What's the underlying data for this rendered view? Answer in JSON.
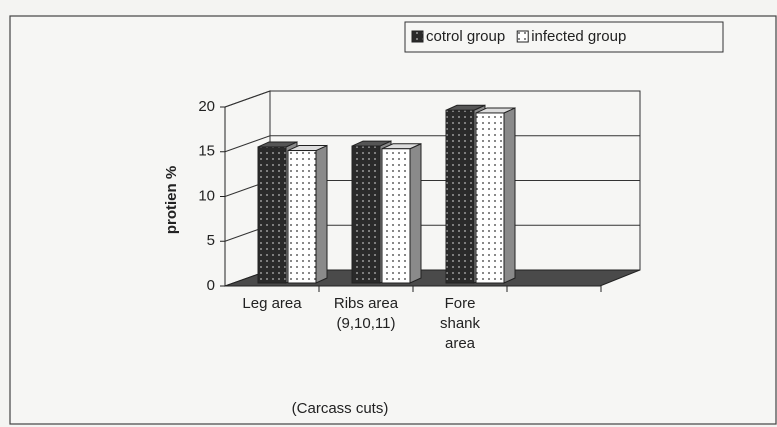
{
  "chart_data": {
    "type": "bar3d",
    "categories": [
      "Leg area",
      "Ribs area (9,10,11)",
      "Fore shank area"
    ],
    "series": [
      {
        "name": "cotrol group",
        "color": "#2a2a2a",
        "values": [
          15.2,
          15.3,
          19.3
        ]
      },
      {
        "name": "infected group",
        "color": "#ffffff",
        "values": [
          14.8,
          15.0,
          19.0
        ]
      }
    ],
    "ylabel": "protien %",
    "xlabel": "(Carcass cuts)",
    "ylim": [
      0,
      20
    ],
    "yticks": [
      0,
      5,
      10,
      15,
      20
    ],
    "grid": true,
    "legend": "top-right"
  }
}
